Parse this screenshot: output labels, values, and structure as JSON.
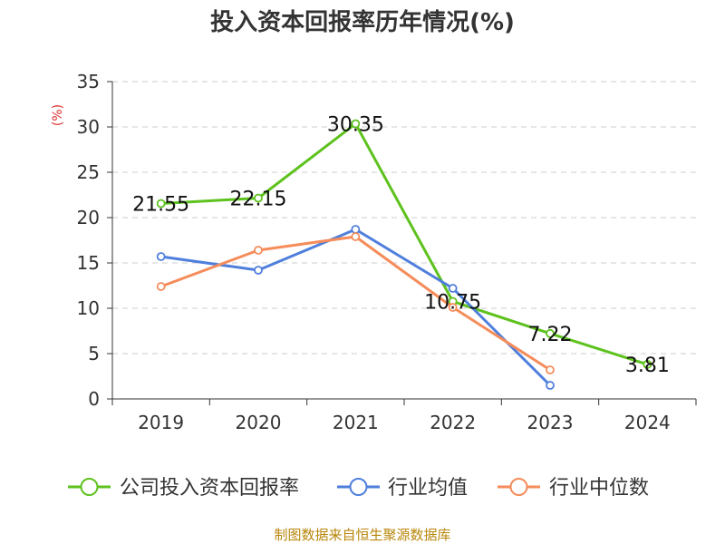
{
  "colors": {
    "company": "#5ec21e",
    "industry_avg": "#4f7fdc",
    "industry_median": "#f58c5a",
    "grid": "#cccccc",
    "axis": "#333333",
    "unit": "#e03030",
    "source": "#b8860b"
  },
  "chart_data": {
    "type": "line",
    "title": "投入资本回报率历年情况(%)",
    "ylabel": "(%)",
    "categories": [
      "2019",
      "2020",
      "2021",
      "2022",
      "2023",
      "2024"
    ],
    "ylim": [
      0,
      35
    ],
    "yticks": [
      0,
      5,
      10,
      15,
      20,
      25,
      30,
      35
    ],
    "grid": true,
    "legend_position": "bottom",
    "series": [
      {
        "name": "公司投入资本回报率",
        "key": "company",
        "values": [
          21.55,
          22.15,
          30.35,
          10.75,
          7.22,
          3.81
        ],
        "labels": [
          "21.55",
          "22.15",
          "30.35",
          "10.75",
          "7.22",
          "3.81"
        ]
      },
      {
        "name": "行业均值",
        "key": "industry_avg",
        "values": [
          15.7,
          14.2,
          18.7,
          12.2,
          1.5,
          null
        ]
      },
      {
        "name": "行业中位数",
        "key": "industry_median",
        "values": [
          12.4,
          16.4,
          17.9,
          10.1,
          3.2,
          null
        ]
      }
    ]
  },
  "source": "制图数据来自恒生聚源数据库"
}
